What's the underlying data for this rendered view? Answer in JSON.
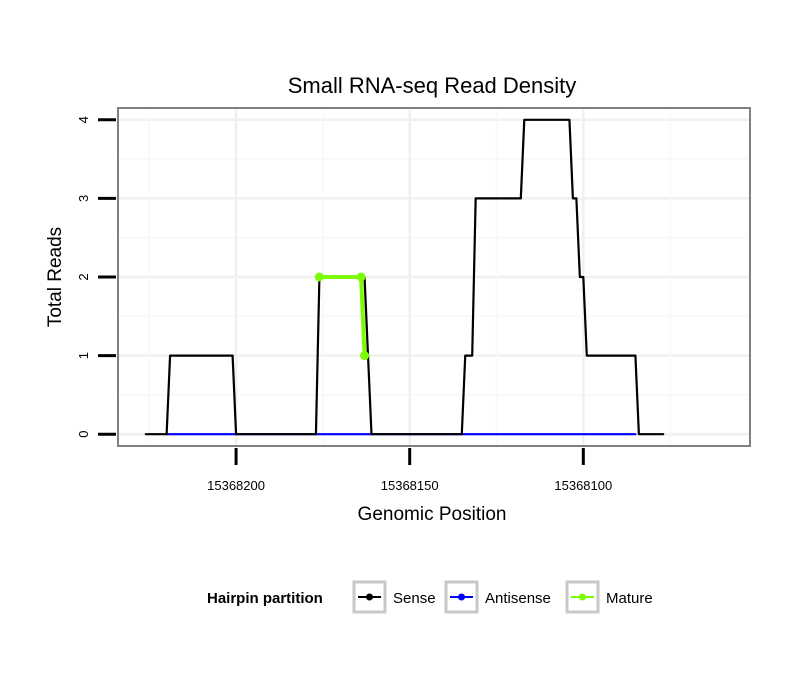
{
  "chart_data": {
    "type": "line",
    "title": "Small RNA-seq Read Density",
    "xlabel": "Genomic Position",
    "ylabel": "Total Reads",
    "x_reversed": true,
    "xlim": [
      15368234,
      15368052
    ],
    "ylim": [
      -0.15,
      4.15
    ],
    "x_ticks": [
      15368200,
      15368150,
      15368100
    ],
    "x_tick_labels": [
      "15368200",
      "15368150",
      "15368100"
    ],
    "y_ticks": [
      0,
      1,
      2,
      3,
      4
    ],
    "y_tick_labels": [
      "0",
      "1",
      "2",
      "3",
      "4"
    ],
    "grid": true,
    "legend": {
      "title": "Hairpin partition",
      "position": "bottom",
      "items": [
        {
          "label": "Sense",
          "color": "#000000"
        },
        {
          "label": "Antisense",
          "color": "#0000ff"
        },
        {
          "label": "Mature",
          "color": "#7cfc00"
        }
      ]
    },
    "series": [
      {
        "name": "Sense",
        "color": "#000000",
        "x": [
          15368226,
          15368220,
          15368219,
          15368201,
          15368200,
          15368177,
          15368176,
          15368163,
          15368162,
          15368161,
          15368135,
          15368134,
          15368132,
          15368131,
          15368118,
          15368117,
          15368104,
          15368103,
          15368102,
          15368101,
          15368100,
          15368099,
          15368098,
          15368097,
          15368085,
          15368084,
          15368077
        ],
        "y": [
          0,
          0,
          1,
          1,
          0,
          0,
          2,
          2,
          1,
          0,
          0,
          1,
          1,
          3,
          3,
          4,
          4,
          3,
          3,
          2,
          2,
          1,
          1,
          1,
          1,
          0,
          0
        ]
      },
      {
        "name": "Antisense",
        "color": "#0000ff",
        "x": [
          15368220,
          15368085
        ],
        "y": [
          0,
          0
        ]
      },
      {
        "name": "Mature",
        "color": "#7cfc00",
        "x": [
          15368176,
          15368164,
          15368163
        ],
        "y": [
          2,
          2,
          1
        ]
      }
    ]
  }
}
